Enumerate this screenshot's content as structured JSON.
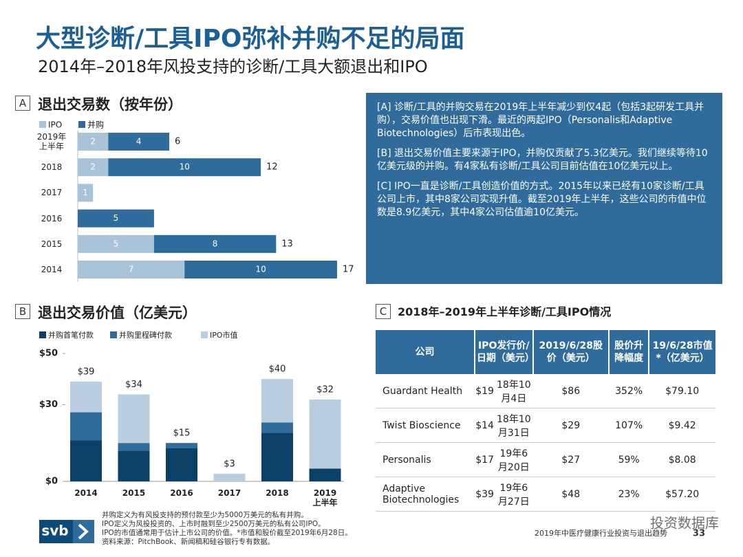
{
  "header": {
    "title": "大型诊断/工具IPO弥补并购不足的局面",
    "subtitle": "2014年–2018年风投支持的诊断/工具大额退出和IPO"
  },
  "chart_data": [
    {
      "type": "bar",
      "orientation": "horizontal",
      "stacked": true,
      "label": "A",
      "title": "退出交易数（按年份）",
      "categories": [
        "2019年\n上半年",
        "2018",
        "2017",
        "2016",
        "2015",
        "2014"
      ],
      "series": [
        {
          "name": "IPO",
          "color": "#a9c3d8",
          "values": [
            2,
            2,
            1,
            null,
            5,
            7
          ]
        },
        {
          "name": "并购",
          "color": "#2f6c9c",
          "values": [
            4,
            10,
            null,
            5,
            8,
            10
          ]
        }
      ],
      "totals": [
        6,
        12,
        null,
        null,
        13,
        17
      ]
    },
    {
      "type": "bar",
      "orientation": "vertical",
      "stacked": true,
      "label": "B",
      "title": "退出交易价值（亿美元）",
      "categories": [
        "2014",
        "2015",
        "2016",
        "2017",
        "2018",
        "2019\n上半年"
      ],
      "series": [
        {
          "name": "并购首笔付款",
          "color": "#0d4066",
          "values": [
            16,
            12,
            13,
            null,
            19,
            5
          ]
        },
        {
          "name": "并购里程碑付款",
          "color": "#2f6c9c",
          "values": [
            11,
            3,
            2,
            null,
            4,
            null
          ]
        },
        {
          "name": "IPO市值",
          "color": "#b9cee0",
          "values": [
            12,
            19,
            null,
            3,
            17,
            27
          ]
        }
      ],
      "totals": [
        39,
        34,
        15,
        3,
        40,
        32
      ],
      "total_labels": [
        "$39",
        "$34",
        "$15",
        "$3",
        "$40",
        "$32"
      ],
      "ylim": [
        0,
        50
      ],
      "yticks": [
        {
          "value": 0,
          "label": "$0"
        },
        {
          "value": 30,
          "label": "$30"
        },
        {
          "value": 50,
          "label": "$50"
        }
      ]
    }
  ],
  "panel": {
    "paragraphs": [
      "[A] 诊断/工具的并购交易在2019年上半年减少到仅4起（包括3起研发工具并购），交易价值也出现下滑。最近的两起IPO（Personalis和Adaptive Biotechnologies）后市表现出色。",
      "[B] 退出交易价值主要来源于IPO，并购仅贡献了5.3亿美元。我们继续等待10亿美元级的并购。有4家私有诊断/工具公司目前估值在10亿美元以上。",
      "[C] IPO一直是诊断/工具创造价值的方式。2015年以来已经有10家诊断/工具公司上市，其中8家公司实现升值。截至2019年上半年，这些公司的市值中位数是8.9亿美元，其中4家公司估值逾10亿美元。"
    ]
  },
  "table": {
    "label": "C",
    "title": "2018年–2019年上半年诊断/工具IPO情况",
    "header": [
      "公司",
      "IPO发行价/日期（美元）",
      "2019/6/28股价（美元）",
      "股价升降幅度",
      "19/6/28市值*（亿美元）"
    ],
    "rows": [
      [
        "Guardant Health",
        "$19",
        "18年10月4日",
        "$86",
        "352%",
        "$79.10"
      ],
      [
        "Twist Bioscience",
        "$14",
        "18年10月31日",
        "$29",
        "107%",
        "$9.42"
      ],
      [
        "Personalis",
        "$17",
        "19年6月20日",
        "$27",
        "59%",
        "$8.08"
      ],
      [
        "Adaptive Biotechnologies",
        "$39",
        "19年6月27日",
        "$48",
        "23%",
        "$57.20"
      ]
    ]
  },
  "footer": {
    "logo": "svb",
    "notes": [
      "并购定义为有风投支持的预付款至少为5000万美元的私有并购。",
      "IPO定义为风投投资的、上市时融到至少2500万美元的私有公司IPO。",
      "IPO的市值通常用于估计上市公司的价值。*市值和股价截至2019年6月28日。",
      "资料来源：PitchBook、新闻稿和硅谷银行专有数据。"
    ],
    "report": "2019年中医疗健康行业投资与退出趋势",
    "page": 33,
    "watermark": "投资数据库"
  }
}
